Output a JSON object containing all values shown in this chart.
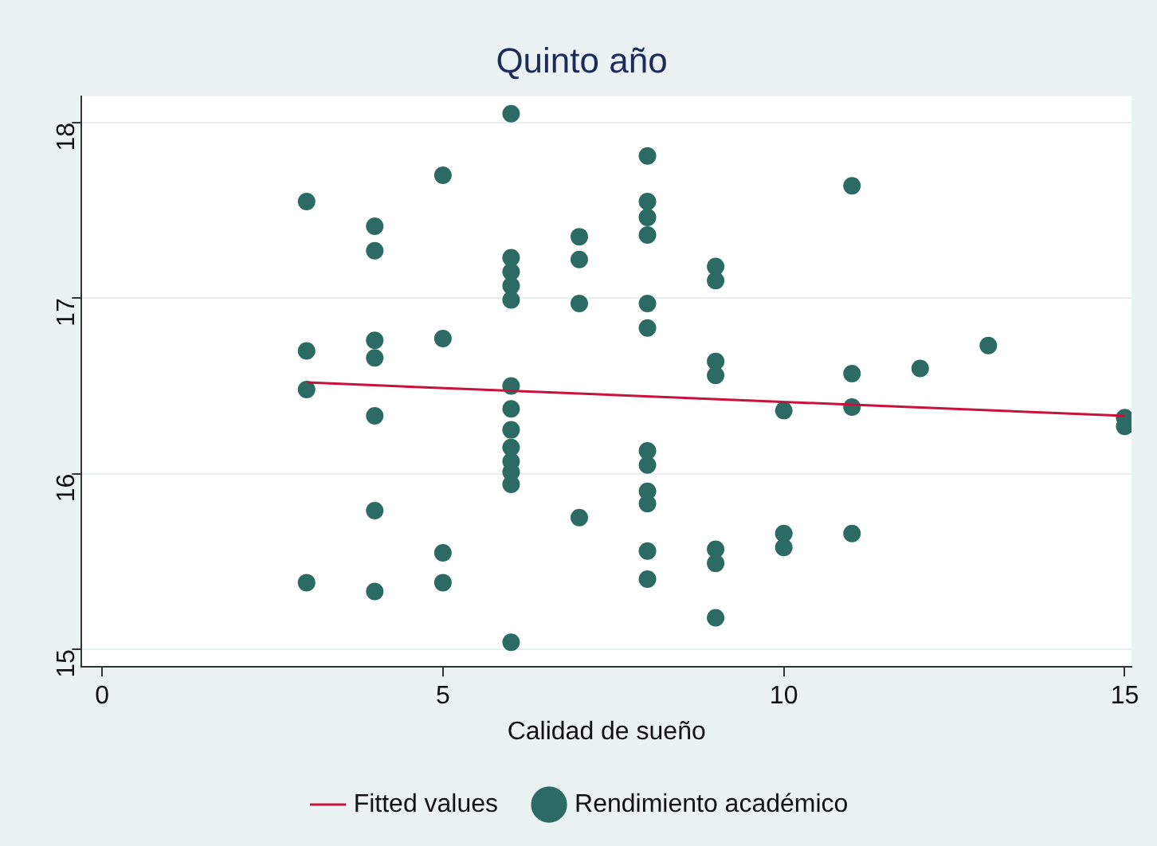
{
  "chart_data": {
    "type": "scatter",
    "title": "Quinto año",
    "xlabel": "Calidad de sueño",
    "xlim": [
      -0.3,
      15.1
    ],
    "ylim": [
      14.9,
      18.15
    ],
    "xticks": [
      0,
      5,
      10,
      15
    ],
    "yticks": [
      15,
      16,
      17,
      18
    ],
    "grid": "y",
    "legend": "bottom",
    "marker": "circle",
    "series": [
      {
        "name": "Fitted values",
        "type": "line",
        "marker": "none",
        "color": "#c8123c",
        "x": [
          3,
          15
        ],
        "values": [
          16.52,
          16.33
        ]
      },
      {
        "name": "Rendimiento académico",
        "color": "#2c6b63",
        "x": [
          3,
          3,
          3,
          3,
          4,
          4,
          4,
          4,
          4,
          4,
          4,
          5,
          5,
          5,
          5,
          6,
          6,
          6,
          6,
          6,
          6,
          6,
          6,
          6,
          6,
          6,
          6,
          6,
          7,
          7,
          7,
          7,
          8,
          8,
          8,
          8,
          8,
          8,
          8,
          8,
          8,
          8,
          8,
          8,
          9,
          9,
          9,
          9,
          9,
          9,
          9,
          10,
          10,
          10,
          11,
          11,
          11,
          11,
          12,
          13,
          15,
          15
        ],
        "values": [
          17.55,
          16.7,
          16.48,
          15.38,
          17.41,
          17.27,
          16.76,
          16.66,
          16.33,
          15.79,
          15.33,
          17.7,
          16.77,
          15.55,
          15.38,
          18.05,
          17.23,
          17.15,
          17.07,
          16.99,
          16.5,
          16.37,
          16.25,
          16.15,
          16.07,
          16.01,
          15.94,
          15.04,
          17.35,
          17.22,
          16.97,
          15.75,
          17.81,
          17.55,
          17.46,
          17.36,
          16.97,
          16.83,
          16.13,
          16.05,
          15.9,
          15.83,
          15.56,
          15.4,
          17.18,
          17.1,
          16.64,
          16.56,
          15.57,
          15.49,
          15.18,
          16.36,
          15.66,
          15.58,
          17.64,
          16.57,
          16.38,
          15.66,
          16.6,
          16.73,
          16.32,
          16.27
        ]
      }
    ]
  }
}
